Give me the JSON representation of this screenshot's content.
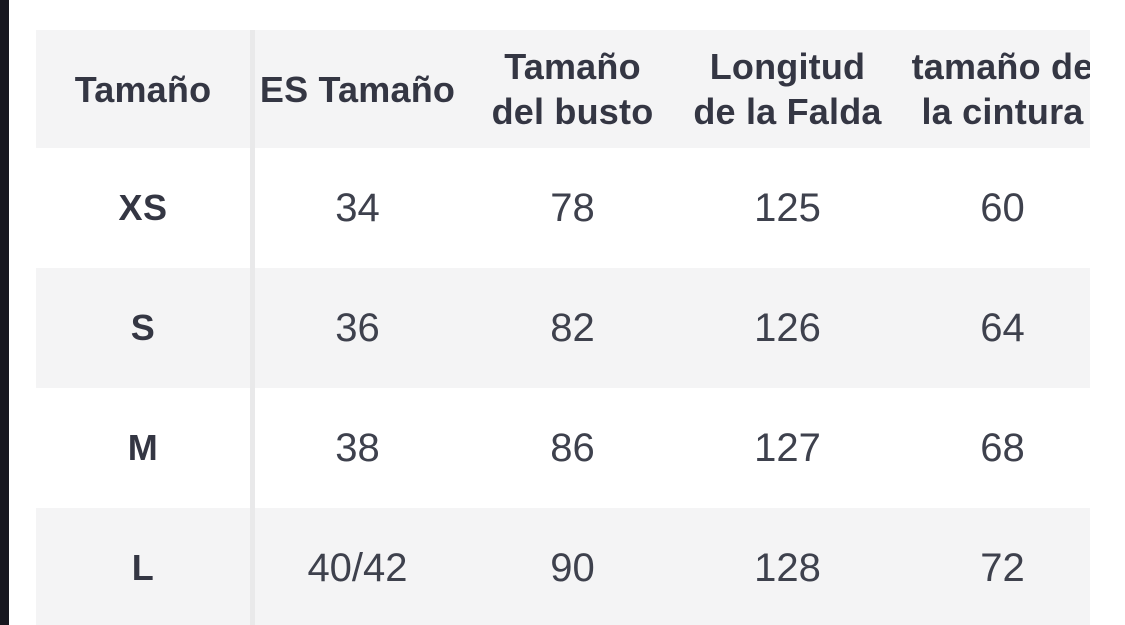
{
  "table": {
    "columns": [
      {
        "label": "Tamaño",
        "lines": [
          "Tamaño"
        ]
      },
      {
        "label": "ES Tamaño",
        "lines": [
          "ES Tamaño"
        ]
      },
      {
        "label": "Tamaño del busto",
        "lines": [
          "Tamaño",
          "del busto"
        ]
      },
      {
        "label": "Longitud de la Falda",
        "lines": [
          "Longitud",
          "de la Falda"
        ]
      },
      {
        "label": "tamaño de la cintura",
        "lines": [
          "tamaño de",
          "la cintura"
        ]
      }
    ],
    "rows": [
      {
        "label": "XS",
        "cells": [
          "34",
          "78",
          "125",
          "60"
        ]
      },
      {
        "label": "S",
        "cells": [
          "36",
          "82",
          "126",
          "64"
        ]
      },
      {
        "label": "M",
        "cells": [
          "38",
          "86",
          "127",
          "68"
        ]
      },
      {
        "label": "L",
        "cells": [
          "40/42",
          "90",
          "128",
          "72"
        ]
      }
    ]
  },
  "chart_data": {
    "type": "table",
    "columns": [
      "Tamaño",
      "ES Tamaño",
      "Tamaño del busto",
      "Longitud de la Falda",
      "tamaño de la cintura"
    ],
    "rows": [
      [
        "XS",
        "34",
        "78",
        "125",
        "60"
      ],
      [
        "S",
        "36",
        "82",
        "126",
        "64"
      ],
      [
        "M",
        "38",
        "86",
        "127",
        "68"
      ],
      [
        "L",
        "40/42",
        "90",
        "128",
        "72"
      ]
    ]
  },
  "colors": {
    "page_bg": "#ffffff",
    "striped_row_bg": "#f4f4f5",
    "column_divider": "#e9e9ea",
    "header_text": "#343643",
    "value_text": "#3e414d",
    "left_edge_strip": "#17171f"
  }
}
